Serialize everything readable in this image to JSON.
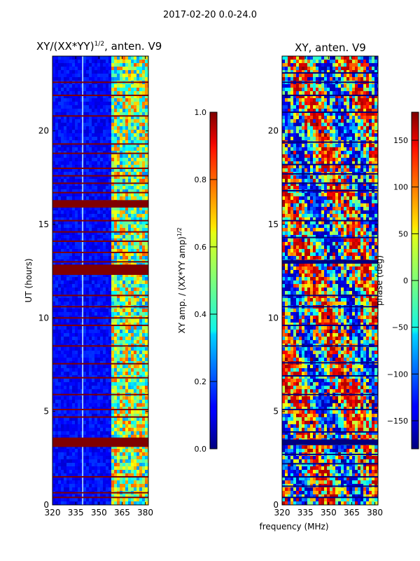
{
  "chart_data": [
    {
      "type": "heatmap",
      "title": "XY/(XX*YY)^1/2, anten. V9",
      "title_base": "XY/(XX*YY)",
      "title_exp": "1/2",
      "title_tail": ", anten. V9",
      "xlabel": "",
      "ylabel": "UT (hours)",
      "xlim": [
        320,
        382
      ],
      "ylim": [
        0,
        24
      ],
      "xticks": [
        320,
        335,
        350,
        365,
        380
      ],
      "yticks": [
        0,
        5,
        10,
        15,
        20
      ],
      "colorbar": {
        "label": "XY amp. / (XX*YY amp)^1/2",
        "label_base": "XY amp. / (XX*YY amp)",
        "label_exp": "1/2",
        "range": [
          0.0,
          1.0
        ],
        "ticks": [
          "0.0",
          "0.2",
          "0.4",
          "0.6",
          "0.8",
          "1.0"
        ]
      },
      "flagged_bands_hours": [
        [
          3.1,
          3.6
        ],
        [
          12.3,
          12.85
        ],
        [
          15.9,
          16.3
        ]
      ],
      "flagged_lines_hours": [
        0.4,
        0.65,
        1.5,
        4.7,
        5.1,
        5.9,
        6.8,
        7.55,
        8.5,
        9.6,
        10.0,
        10.6,
        11.2,
        13.0,
        13.5,
        14.1,
        14.6,
        15.2,
        16.7,
        17.2,
        17.6,
        18.0,
        18.8,
        19.3,
        20.8,
        21.9,
        22.6
      ],
      "bright_channel_mhz": 339.5,
      "active_band_mhz": [
        357,
        382
      ]
    },
    {
      "type": "heatmap",
      "title": "XY, anten. V9",
      "xlabel": "frequency (MHz)",
      "ylabel": "",
      "xlim": [
        320,
        382
      ],
      "ylim": [
        0,
        24
      ],
      "xticks": [
        320,
        335,
        350,
        365,
        380
      ],
      "yticks": [
        0,
        5,
        10,
        15,
        20
      ],
      "colorbar": {
        "label": "phase (deg)",
        "range": [
          -180,
          180
        ],
        "ticks": [
          "150",
          "100",
          "50",
          "0",
          "−50",
          "−100",
          "−150"
        ]
      },
      "flagged_bands_hours": [
        [
          3.2,
          3.5
        ],
        [
          12.9,
          13.1
        ]
      ],
      "flagged_lines_hours": [
        0.4,
        1.0,
        1.5,
        2.2,
        2.7,
        3.9,
        5.1,
        5.9,
        6.9,
        7.6,
        8.5,
        9.6,
        10.6,
        11.2,
        14.3,
        15.2,
        16.8,
        17.2,
        17.7,
        18.2,
        19.4,
        21.0,
        21.9,
        22.6,
        23.1
      ]
    }
  ],
  "figure": {
    "suptitle": "2017-02-20 0.0-24.0"
  }
}
